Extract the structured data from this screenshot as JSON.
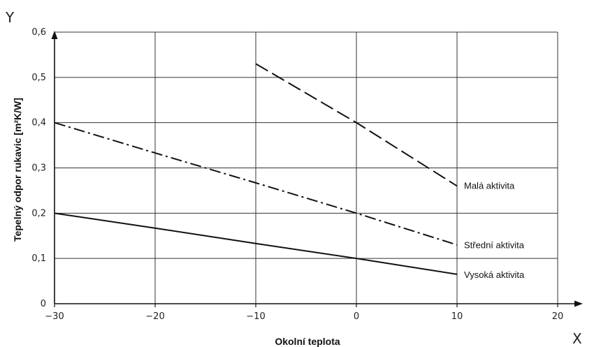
{
  "chart_data": {
    "type": "line",
    "title": "",
    "xlabel": "Okolní teplota",
    "ylabel": "Tepelný odpor rukavic [m²K/W]",
    "x_axis_letter": "X",
    "y_axis_letter": "Y",
    "xlim": [
      -30,
      20
    ],
    "ylim": [
      0,
      0.6
    ],
    "x_ticks": [
      -30,
      -20,
      -10,
      0,
      10,
      20
    ],
    "x_tick_labels": [
      "−30",
      "−20",
      "−10",
      "0",
      "10",
      "20"
    ],
    "y_ticks": [
      0,
      0.1,
      0.2,
      0.3,
      0.4,
      0.5,
      0.6
    ],
    "y_tick_labels": [
      "0",
      "0,1",
      "0,2",
      "0,3",
      "0,4",
      "0,5",
      "0,6"
    ],
    "grid": true,
    "series": [
      {
        "name": "Malá aktivita",
        "style": "dashed",
        "x": [
          -10,
          0,
          10
        ],
        "y": [
          0.53,
          0.4,
          0.26
        ]
      },
      {
        "name": "Střední aktivita",
        "style": "dashdot",
        "x": [
          -30,
          -20,
          -10,
          0,
          10
        ],
        "y": [
          0.4,
          0.333,
          0.267,
          0.2,
          0.13
        ]
      },
      {
        "name": "Vysoká aktivita",
        "style": "solid",
        "x": [
          -30,
          -20,
          -10,
          0,
          10
        ],
        "y": [
          0.2,
          0.167,
          0.133,
          0.1,
          0.065
        ]
      }
    ],
    "line_color": "#111111",
    "grid_color": "#333333"
  }
}
